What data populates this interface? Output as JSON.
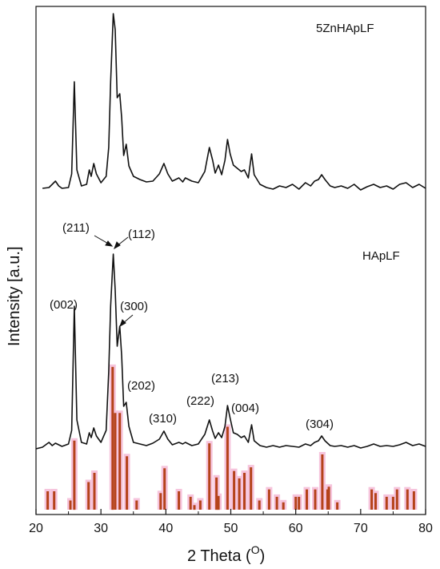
{
  "chart_data": {
    "type": "line",
    "xlabel": "2 Theta (",
    "xlabel_sup": "O",
    "xlabel_close": ")",
    "ylabel": "Intensity [a.u.]",
    "xlim": [
      20,
      80
    ],
    "x_ticks": [
      "20",
      "30",
      "40",
      "50",
      "60",
      "70",
      "80"
    ],
    "series": [
      {
        "name": "5ZnHApLF",
        "color": "#111111",
        "points": [
          [
            21,
            7
          ],
          [
            22,
            8
          ],
          [
            22.5,
            12
          ],
          [
            23,
            16
          ],
          [
            23.5,
            10
          ],
          [
            24,
            7
          ],
          [
            25,
            8
          ],
          [
            25.5,
            25
          ],
          [
            25.9,
            140
          ],
          [
            26.3,
            30
          ],
          [
            27,
            10
          ],
          [
            27.8,
            12
          ],
          [
            28.2,
            30
          ],
          [
            28.5,
            22
          ],
          [
            28.9,
            38
          ],
          [
            29.3,
            25
          ],
          [
            30,
            14
          ],
          [
            30.8,
            22
          ],
          [
            31.2,
            58
          ],
          [
            31.5,
            140
          ],
          [
            31.9,
            225
          ],
          [
            32.2,
            205
          ],
          [
            32.5,
            120
          ],
          [
            32.9,
            125
          ],
          [
            33.2,
            95
          ],
          [
            33.5,
            48
          ],
          [
            33.9,
            62
          ],
          [
            34.3,
            35
          ],
          [
            35,
            22
          ],
          [
            36,
            18
          ],
          [
            37,
            15
          ],
          [
            38,
            16
          ],
          [
            39,
            25
          ],
          [
            39.7,
            38
          ],
          [
            40.3,
            25
          ],
          [
            41,
            16
          ],
          [
            42,
            20
          ],
          [
            42.6,
            15
          ],
          [
            43,
            20
          ],
          [
            44,
            16
          ],
          [
            45,
            14
          ],
          [
            46,
            28
          ],
          [
            46.7,
            58
          ],
          [
            47.2,
            42
          ],
          [
            47.6,
            26
          ],
          [
            48.1,
            36
          ],
          [
            48.6,
            24
          ],
          [
            49.1,
            42
          ],
          [
            49.5,
            68
          ],
          [
            49.9,
            50
          ],
          [
            50.4,
            36
          ],
          [
            51,
            32
          ],
          [
            51.6,
            28
          ],
          [
            52.1,
            30
          ],
          [
            52.7,
            20
          ],
          [
            53.2,
            50
          ],
          [
            53.6,
            24
          ],
          [
            54.5,
            12
          ],
          [
            55.5,
            8
          ],
          [
            56.5,
            6
          ],
          [
            57.5,
            10
          ],
          [
            58.5,
            8
          ],
          [
            59.5,
            12
          ],
          [
            60.5,
            6
          ],
          [
            61.5,
            14
          ],
          [
            62.3,
            10
          ],
          [
            62.9,
            16
          ],
          [
            63.5,
            18
          ],
          [
            64,
            24
          ],
          [
            64.5,
            18
          ],
          [
            65.3,
            10
          ],
          [
            66,
            8
          ],
          [
            67,
            10
          ],
          [
            68,
            7
          ],
          [
            69,
            12
          ],
          [
            70,
            5
          ],
          [
            71,
            9
          ],
          [
            72,
            12
          ],
          [
            73,
            8
          ],
          [
            74,
            10
          ],
          [
            75,
            6
          ],
          [
            76,
            12
          ],
          [
            77,
            14
          ],
          [
            78,
            8
          ],
          [
            79,
            12
          ],
          [
            80,
            7
          ]
        ]
      },
      {
        "name": "HApLF",
        "color": "#111111",
        "points": [
          [
            20,
            2
          ],
          [
            21,
            4
          ],
          [
            22,
            10
          ],
          [
            22.5,
            6
          ],
          [
            23,
            9
          ],
          [
            24,
            5
          ],
          [
            25,
            8
          ],
          [
            25.5,
            25
          ],
          [
            25.9,
            180
          ],
          [
            26.3,
            38
          ],
          [
            27,
            10
          ],
          [
            27.8,
            8
          ],
          [
            28.2,
            22
          ],
          [
            28.5,
            16
          ],
          [
            28.9,
            28
          ],
          [
            29.3,
            18
          ],
          [
            30,
            10
          ],
          [
            30.8,
            25
          ],
          [
            31.2,
            98
          ],
          [
            31.5,
            180
          ],
          [
            31.9,
            245
          ],
          [
            32.2,
            200
          ],
          [
            32.5,
            130
          ],
          [
            32.9,
            155
          ],
          [
            33.2,
            118
          ],
          [
            33.5,
            55
          ],
          [
            33.9,
            60
          ],
          [
            34.3,
            30
          ],
          [
            35,
            10
          ],
          [
            36,
            8
          ],
          [
            37,
            6
          ],
          [
            38,
            9
          ],
          [
            39,
            14
          ],
          [
            39.7,
            24
          ],
          [
            40.3,
            14
          ],
          [
            41,
            7
          ],
          [
            42,
            10
          ],
          [
            42.6,
            8
          ],
          [
            43,
            10
          ],
          [
            44,
            6
          ],
          [
            45,
            8
          ],
          [
            46,
            20
          ],
          [
            46.7,
            38
          ],
          [
            47.2,
            24
          ],
          [
            47.6,
            15
          ],
          [
            48.1,
            22
          ],
          [
            48.6,
            16
          ],
          [
            49.1,
            30
          ],
          [
            49.5,
            56
          ],
          [
            49.9,
            40
          ],
          [
            50.4,
            22
          ],
          [
            51,
            20
          ],
          [
            51.6,
            16
          ],
          [
            52.1,
            18
          ],
          [
            52.7,
            10
          ],
          [
            53.2,
            32
          ],
          [
            53.6,
            12
          ],
          [
            54.5,
            6
          ],
          [
            55.5,
            4
          ],
          [
            56.5,
            6
          ],
          [
            57.5,
            4
          ],
          [
            58.5,
            6
          ],
          [
            59.5,
            5
          ],
          [
            60.5,
            4
          ],
          [
            61.5,
            8
          ],
          [
            62.3,
            6
          ],
          [
            62.9,
            10
          ],
          [
            63.5,
            12
          ],
          [
            64,
            18
          ],
          [
            64.5,
            12
          ],
          [
            65.3,
            6
          ],
          [
            66,
            5
          ],
          [
            67,
            6
          ],
          [
            68,
            4
          ],
          [
            69,
            6
          ],
          [
            70,
            3
          ],
          [
            71,
            5
          ],
          [
            72,
            8
          ],
          [
            73,
            5
          ],
          [
            74,
            6
          ],
          [
            75,
            5
          ],
          [
            76,
            7
          ],
          [
            77,
            10
          ],
          [
            78,
            6
          ],
          [
            79,
            8
          ],
          [
            80,
            5
          ]
        ]
      }
    ],
    "reference_bars": [
      [
        21.8,
        20
      ],
      [
        22.8,
        20
      ],
      [
        25.3,
        10
      ],
      [
        25.9,
        75
      ],
      [
        28.1,
        30
      ],
      [
        29.0,
        40
      ],
      [
        31.8,
        155
      ],
      [
        32.2,
        105
      ],
      [
        32.9,
        105
      ],
      [
        34.0,
        58
      ],
      [
        35.5,
        10
      ],
      [
        39.2,
        18
      ],
      [
        39.8,
        45
      ],
      [
        42.0,
        20
      ],
      [
        43.8,
        14
      ],
      [
        44.4,
        5
      ],
      [
        45.3,
        10
      ],
      [
        46.7,
        72
      ],
      [
        47.8,
        35
      ],
      [
        48.1,
        15
      ],
      [
        49.5,
        90
      ],
      [
        50.5,
        42
      ],
      [
        51.3,
        34
      ],
      [
        52.1,
        40
      ],
      [
        53.1,
        46
      ],
      [
        54.4,
        10
      ],
      [
        55.9,
        22
      ],
      [
        57.1,
        14
      ],
      [
        58.1,
        8
      ],
      [
        60.0,
        14
      ],
      [
        60.5,
        14
      ],
      [
        61.7,
        22
      ],
      [
        63.0,
        22
      ],
      [
        64.1,
        60
      ],
      [
        64.9,
        22
      ],
      [
        65.1,
        25
      ],
      [
        66.4,
        8
      ],
      [
        71.7,
        22
      ],
      [
        72.3,
        18
      ],
      [
        74.0,
        14
      ],
      [
        75.0,
        14
      ],
      [
        75.6,
        22
      ],
      [
        77.2,
        22
      ],
      [
        78.2,
        20
      ]
    ],
    "reference_color": "#b5421a",
    "reference_shadow": "#f6c4dc",
    "labels": {
      "5ZnHApLF": "5ZnHApLF",
      "HApLF": "HApLF",
      "p211": "(211)",
      "p112": "(112)",
      "p002": "(002)",
      "p300": "(300)",
      "p202": "(202)",
      "p310": "(310)",
      "p222": "(222)",
      "p213": "(213)",
      "p004": "(004)",
      "p304": "(304)"
    }
  }
}
